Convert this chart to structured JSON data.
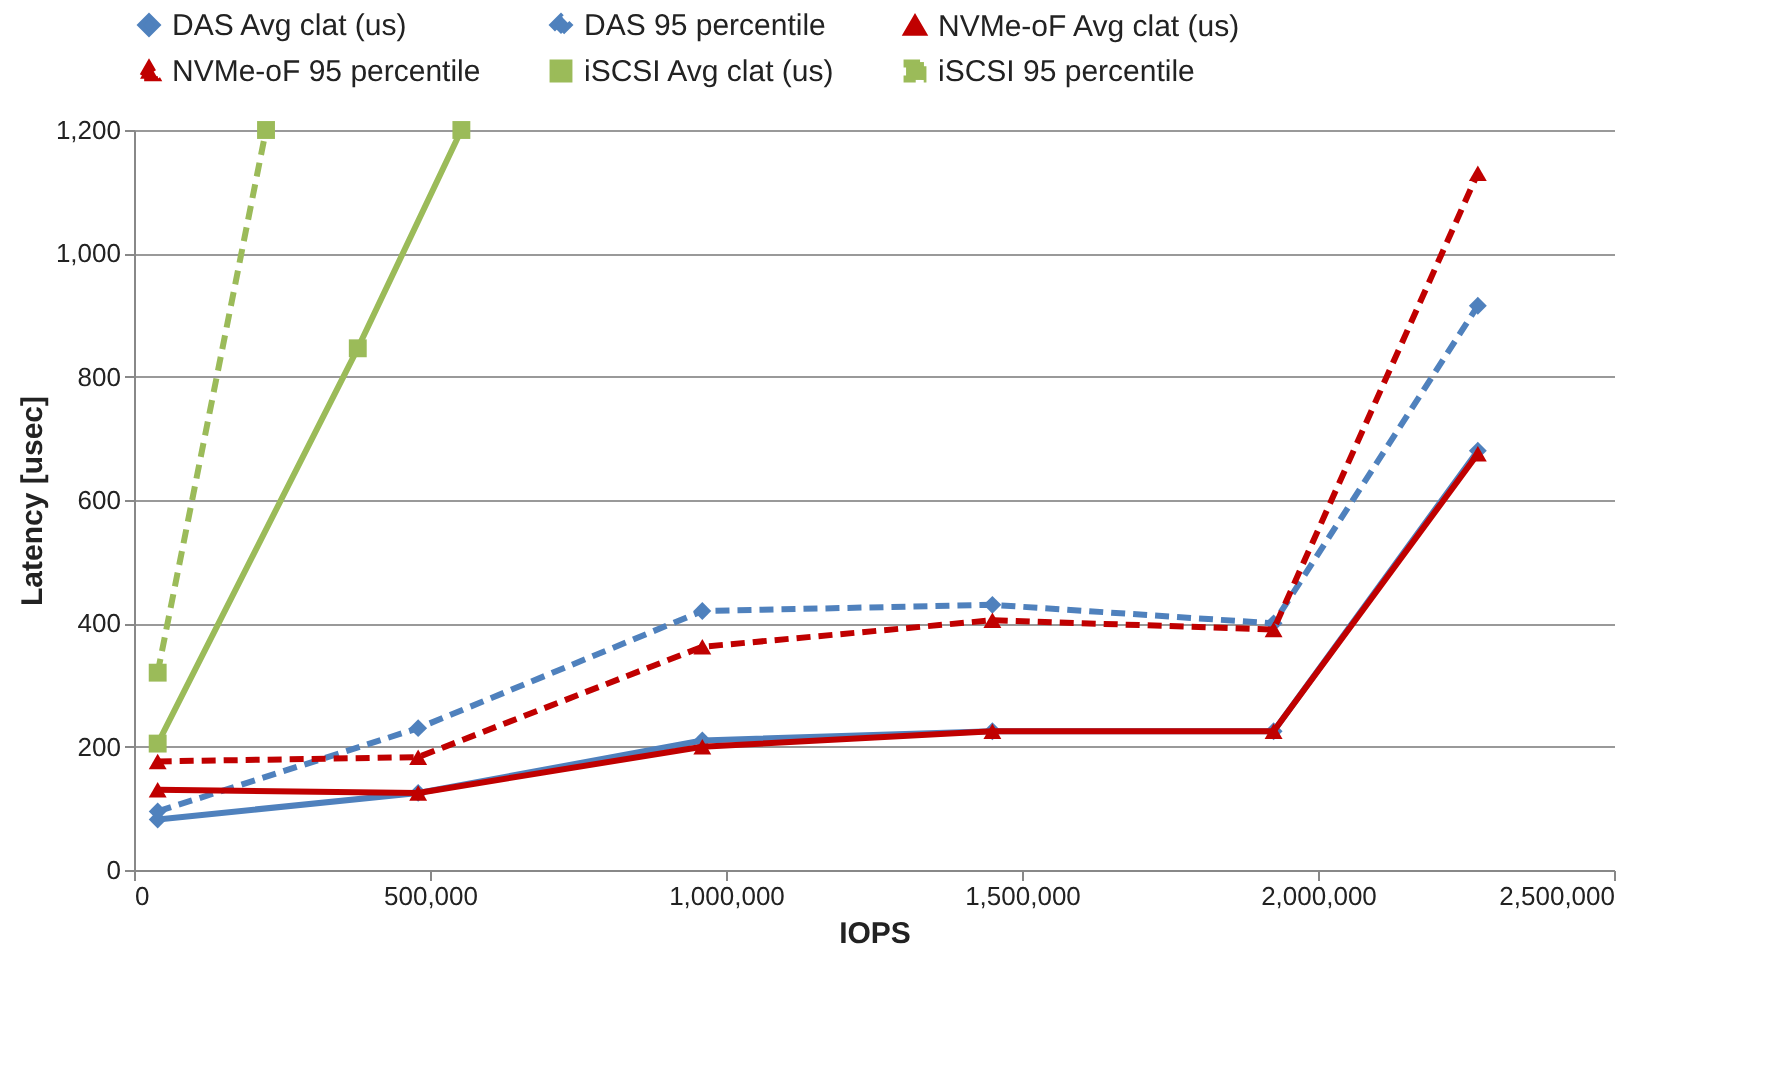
{
  "chart_data": {
    "type": "line",
    "xlabel": "IOPS",
    "ylabel": "Latency [usec]",
    "xlim": [
      0,
      2500000
    ],
    "xticks": [
      {
        "value": 0,
        "label": "0"
      },
      {
        "value": 500000,
        "label": "500,000"
      },
      {
        "value": 1000000,
        "label": "1,000,000"
      },
      {
        "value": 1500000,
        "label": "1,500,000"
      },
      {
        "value": 2000000,
        "label": "2,000,000"
      },
      {
        "value": 2500000,
        "label": "2,500,000"
      }
    ],
    "ylim": [
      0,
      1200
    ],
    "yticks": [
      {
        "value": 0,
        "label": "0"
      },
      {
        "value": 200,
        "label": "200"
      },
      {
        "value": 400,
        "label": "400"
      },
      {
        "value": 600,
        "label": "600"
      },
      {
        "value": 800,
        "label": "800"
      },
      {
        "value": 1000,
        "label": "1,000"
      },
      {
        "value": 1200,
        "label": "1,200"
      }
    ],
    "grid": "y",
    "legend": "top",
    "series": [
      {
        "name": "DAS Avg clat (us)",
        "color": "#4f81bd",
        "marker": "diamond",
        "line_style": "solid",
        "x": [
          40000,
          480000,
          960000,
          1450000,
          1925000,
          2270000
        ],
        "values": [
          82,
          125,
          210,
          225,
          225,
          680
        ]
      },
      {
        "name": "DAS 95 percentile",
        "color": "#4f81bd",
        "marker": "diamond",
        "line_style": "dashed",
        "x": [
          40000,
          480000,
          960000,
          1450000,
          1925000,
          2270000
        ],
        "values": [
          95,
          230,
          420,
          430,
          400,
          915
        ]
      },
      {
        "name": "NVMe-oF Avg clat (us)",
        "color": "#c00000",
        "marker": "triangle",
        "line_style": "solid",
        "x": [
          40000,
          480000,
          960000,
          1450000,
          1925000,
          2270000
        ],
        "values": [
          130,
          125,
          200,
          225,
          225,
          675
        ]
      },
      {
        "name": "NVMe-oF 95 percentile",
        "color": "#c00000",
        "marker": "triangle",
        "line_style": "dashed",
        "x": [
          40000,
          480000,
          960000,
          1450000,
          1925000,
          2270000
        ],
        "values": [
          176,
          183,
          362,
          405,
          390,
          1130
        ]
      },
      {
        "name": "iSCSI Avg clat (us)",
        "color": "#9bbb59",
        "marker": "square",
        "line_style": "solid",
        "x": [
          40000,
          378000,
          553000
        ],
        "values": [
          205,
          846,
          1200
        ]
      },
      {
        "name": "iSCSI 95 percentile",
        "color": "#9bbb59",
        "marker": "square",
        "line_style": "dashed",
        "x": [
          40000,
          223000
        ],
        "values": [
          320,
          1200
        ]
      }
    ]
  }
}
